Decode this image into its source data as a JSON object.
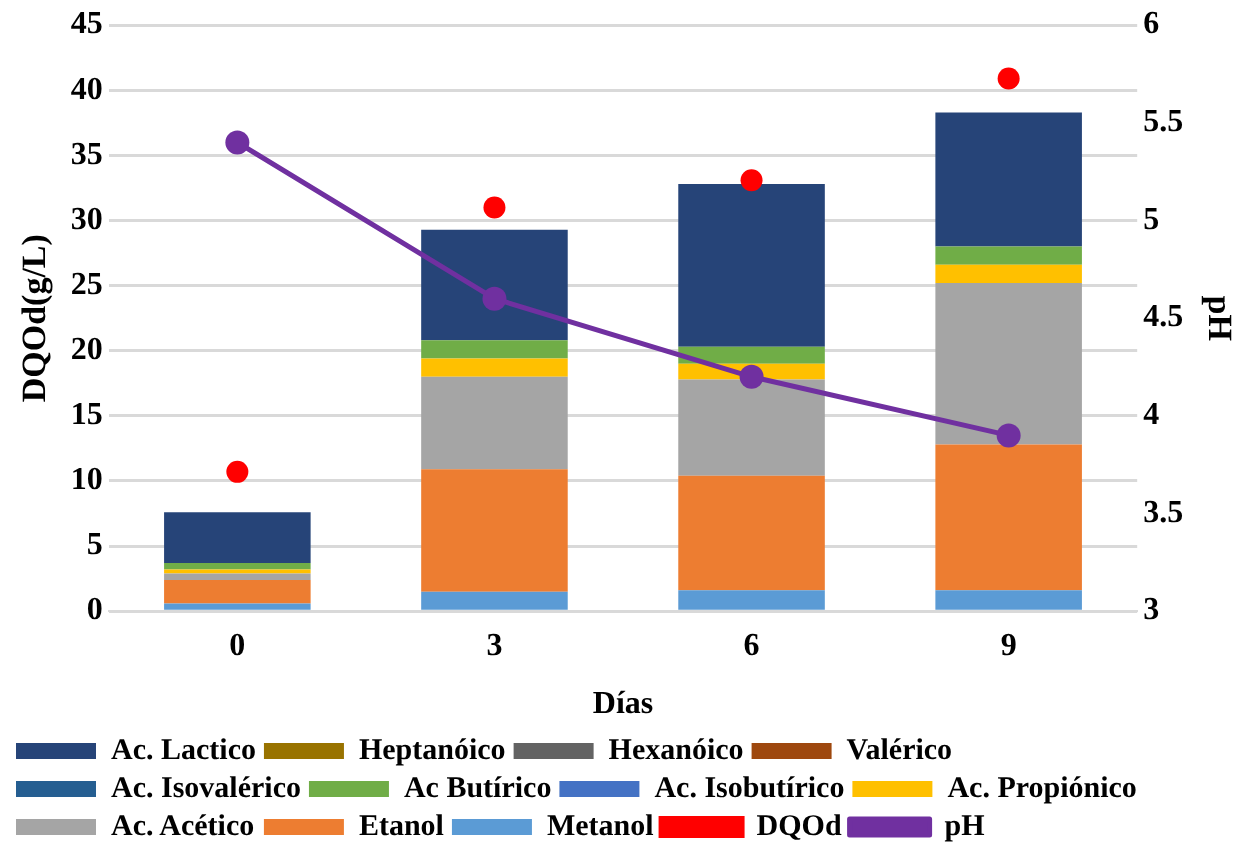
{
  "chart_data": {
    "type": "bar",
    "stacked": true,
    "xlabel": "Días",
    "ylabel": "DQOd(g/L)",
    "y2label": "pH",
    "categories": [
      "0",
      "3",
      "6",
      "9"
    ],
    "ylim": [
      0,
      45
    ],
    "yticks": [
      0,
      5,
      10,
      15,
      20,
      25,
      30,
      35,
      40,
      45
    ],
    "y2lim": [
      3,
      6
    ],
    "y2ticks": [
      3,
      3.5,
      4,
      4.5,
      5,
      5.5,
      6
    ],
    "grid": "y",
    "legend": "bottom",
    "series": [
      {
        "name": "Metanol",
        "color": "#5b9bd5",
        "values": [
          0.6,
          1.5,
          1.6,
          1.6
        ]
      },
      {
        "name": "Etanol",
        "color": "#ed7d31",
        "values": [
          1.8,
          9.4,
          8.8,
          11.2
        ]
      },
      {
        "name": "Ac. Acético",
        "color": "#a5a5a5",
        "values": [
          0.5,
          7.1,
          7.4,
          12.4
        ]
      },
      {
        "name": "Ac. Propiónico",
        "color": "#ffc000",
        "values": [
          0.3,
          1.4,
          1.2,
          1.4
        ]
      },
      {
        "name": "Ac. Isobutírico",
        "color": "#4472c4",
        "values": [
          0,
          0,
          0,
          0
        ]
      },
      {
        "name": "Ac Butírico",
        "color": "#70ad47",
        "values": [
          0.5,
          1.4,
          1.3,
          1.4
        ]
      },
      {
        "name": "Ac. Isovalérico",
        "color": "#255e91",
        "values": [
          0,
          0,
          0,
          0
        ]
      },
      {
        "name": "Valérico",
        "color": "#9e480e",
        "values": [
          0,
          0,
          0,
          0
        ]
      },
      {
        "name": "Hexanóico",
        "color": "#636363",
        "values": [
          0,
          0,
          0,
          0
        ]
      },
      {
        "name": "Heptanóico",
        "color": "#997300",
        "values": [
          0,
          0,
          0,
          0
        ]
      },
      {
        "name": "Ac. Lactico",
        "color": "#264478",
        "values": [
          3.9,
          8.5,
          12.5,
          10.3
        ]
      },
      {
        "name": "DQOd",
        "type": "scatter",
        "marker": "circle",
        "color": "#ff0000",
        "x": [
          "0",
          "3",
          "6",
          "9"
        ],
        "values": [
          10.7,
          31.0,
          33.1,
          40.9
        ]
      },
      {
        "name": "pH",
        "type": "line",
        "axis": "y2",
        "marker": "circle",
        "color": "#7030a0",
        "values": [
          5.4,
          4.6,
          4.2,
          3.9
        ]
      }
    ]
  }
}
